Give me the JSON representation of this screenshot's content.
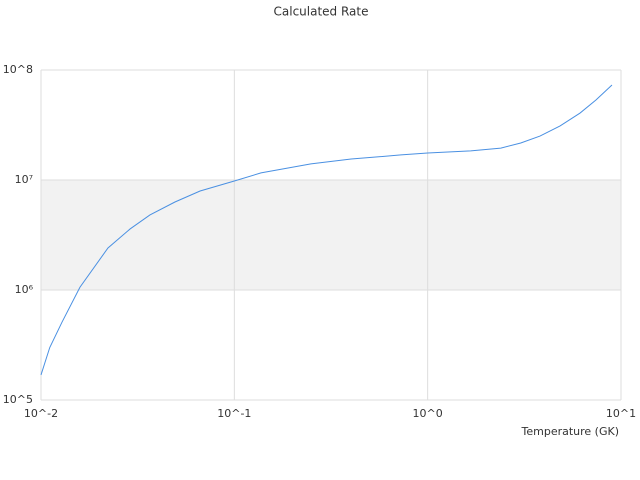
{
  "chart_data": {
    "type": "line",
    "title": "Calculated Rate",
    "x_label": "Temperature (GK)",
    "x": [
      0.01,
      0.0111,
      0.01284,
      0.0159,
      0.0222,
      0.0289,
      0.0366,
      0.0493,
      0.0665,
      0.1,
      0.1374,
      0.249,
      0.402,
      0.728,
      1,
      1.67,
      2.39,
      3.03,
      3.81,
      4.84,
      6.14,
      7.42,
      8.98
    ],
    "series": [
      {
        "color": "#4a90e2",
        "values": [
          169000,
          300000,
          510000,
          1060000,
          2410000,
          3590000,
          4810000,
          6310000,
          7940000,
          9800000,
          11600000,
          14000000,
          15500000,
          16900000,
          17600000,
          18400000,
          19500000,
          21700000,
          25100000,
          31000000,
          40600000,
          53400000,
          73000000
        ]
      }
    ],
    "xlim": [
      0.01,
      10
    ],
    "ylim": [
      100000,
      100000000
    ],
    "xticks": [
      {
        "value": 0.01,
        "label": "10^-2"
      },
      {
        "value": 0.1,
        "label": "10^-1"
      },
      {
        "value": 1,
        "label": "10^0"
      },
      {
        "value": 10,
        "label": "10^1"
      }
    ],
    "yticks": [
      {
        "value": 100000,
        "label": "10^5"
      },
      {
        "value": 1000000,
        "label": "10⁶"
      },
      {
        "value": 10000000,
        "label": "10⁷"
      },
      {
        "value": 100000000,
        "label": "10^8"
      }
    ],
    "x_log": true,
    "y_log": true,
    "band_color": "#f2f2f2",
    "grid_color": "#dddddd"
  }
}
